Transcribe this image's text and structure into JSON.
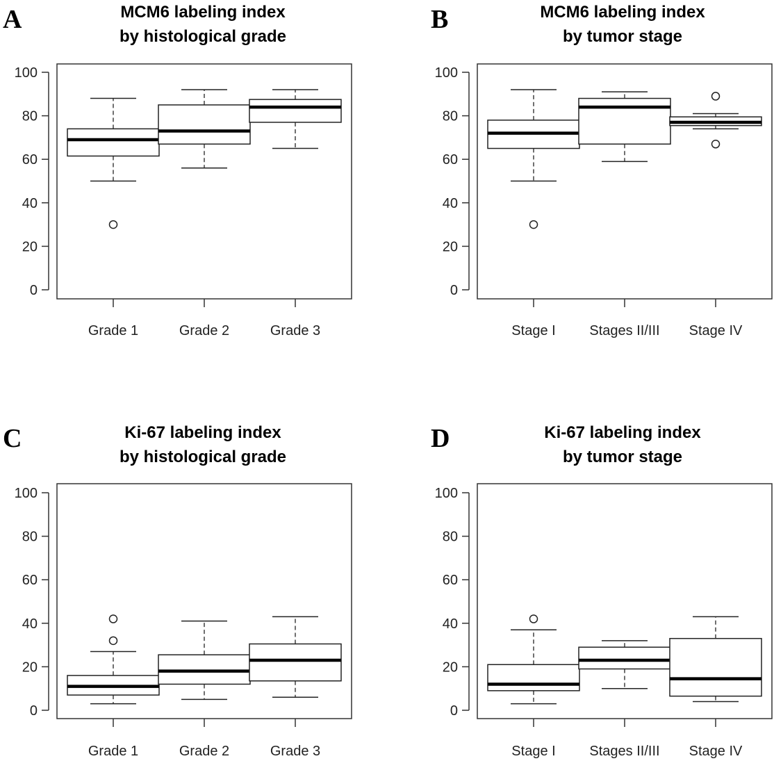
{
  "chart_data": [
    {
      "type": "boxplot",
      "panel": "A",
      "title_lines": [
        "MCM6 labeling index",
        "by histological grade"
      ],
      "categories": [
        "Grade 1",
        "Grade 2",
        "Grade 3"
      ],
      "yticks": [
        0,
        20,
        40,
        60,
        80,
        100
      ],
      "ylim": [
        0,
        100
      ],
      "boxes": [
        {
          "whisker_low": 50,
          "q1": 61.5,
          "median": 69,
          "q3": 74,
          "whisker_high": 88,
          "outliers": [
            30
          ]
        },
        {
          "whisker_low": 56,
          "q1": 67,
          "median": 73,
          "q3": 85,
          "whisker_high": 92,
          "outliers": []
        },
        {
          "whisker_low": 65,
          "q1": 77,
          "median": 84,
          "q3": 87.5,
          "whisker_high": 92,
          "outliers": []
        }
      ]
    },
    {
      "type": "boxplot",
      "panel": "B",
      "title_lines": [
        "MCM6 labeling index",
        "by tumor stage"
      ],
      "categories": [
        "Stage I",
        "Stages II/III",
        "Stage IV"
      ],
      "yticks": [
        0,
        20,
        40,
        60,
        80,
        100
      ],
      "ylim": [
        0,
        100
      ],
      "boxes": [
        {
          "whisker_low": 50,
          "q1": 65,
          "median": 72,
          "q3": 78,
          "whisker_high": 92,
          "outliers": [
            30
          ]
        },
        {
          "whisker_low": 59,
          "q1": 67,
          "median": 84,
          "q3": 88,
          "whisker_high": 91,
          "outliers": []
        },
        {
          "whisker_low": 74,
          "q1": 75.5,
          "median": 77,
          "q3": 79.5,
          "whisker_high": 81,
          "outliers": [
            89,
            67
          ]
        }
      ]
    },
    {
      "type": "boxplot",
      "panel": "C",
      "title_lines": [
        "Ki-67 labeling index",
        "by histological grade"
      ],
      "categories": [
        "Grade 1",
        "Grade 2",
        "Grade 3"
      ],
      "yticks": [
        0,
        20,
        40,
        60,
        80,
        100
      ],
      "ylim": [
        0,
        100
      ],
      "boxes": [
        {
          "whisker_low": 3,
          "q1": 7,
          "median": 11,
          "q3": 16,
          "whisker_high": 27,
          "outliers": [
            32,
            42
          ]
        },
        {
          "whisker_low": 5,
          "q1": 12,
          "median": 18,
          "q3": 25.5,
          "whisker_high": 41,
          "outliers": []
        },
        {
          "whisker_low": 6,
          "q1": 13.5,
          "median": 23,
          "q3": 30.5,
          "whisker_high": 43,
          "outliers": []
        }
      ]
    },
    {
      "type": "boxplot",
      "panel": "D",
      "title_lines": [
        "Ki-67 labeling index",
        "by tumor stage"
      ],
      "categories": [
        "Stage I",
        "Stages II/III",
        "Stage IV"
      ],
      "yticks": [
        0,
        20,
        40,
        60,
        80,
        100
      ],
      "ylim": [
        0,
        100
      ],
      "boxes": [
        {
          "whisker_low": 3,
          "q1": 9,
          "median": 12,
          "q3": 21,
          "whisker_high": 37,
          "outliers": [
            42
          ]
        },
        {
          "whisker_low": 10,
          "q1": 19,
          "median": 23,
          "q3": 29,
          "whisker_high": 32,
          "outliers": []
        },
        {
          "whisker_low": 4,
          "q1": 6.5,
          "median": 14.5,
          "q3": 33,
          "whisker_high": 43,
          "outliers": []
        }
      ]
    }
  ]
}
